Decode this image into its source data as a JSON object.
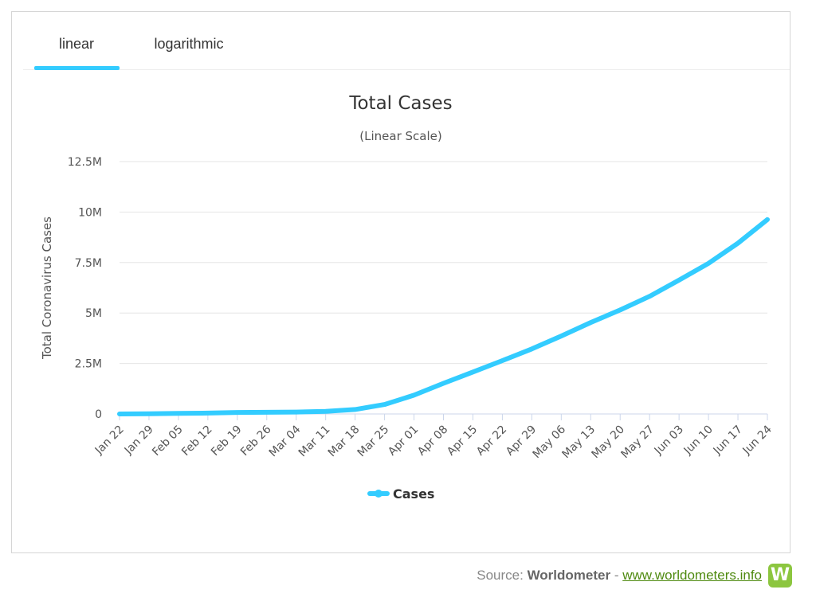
{
  "tabs": [
    {
      "label": "linear",
      "active": true
    },
    {
      "label": "logarithmic",
      "active": false
    }
  ],
  "chart_data": {
    "type": "line",
    "title": "Total Cases",
    "subtitle": "(Linear Scale)",
    "ylabel": "Total Coronavirus Cases",
    "xlabel": "",
    "ylim": [
      0,
      12500000
    ],
    "y_ticks": [
      {
        "value": 0,
        "label": "0"
      },
      {
        "value": 2500000,
        "label": "2.5M"
      },
      {
        "value": 5000000,
        "label": "5M"
      },
      {
        "value": 7500000,
        "label": "7.5M"
      },
      {
        "value": 10000000,
        "label": "10M"
      },
      {
        "value": 12500000,
        "label": "12.5M"
      }
    ],
    "x_tick_labels": [
      "Jan 22",
      "Jan 29",
      "Feb 05",
      "Feb 12",
      "Feb 19",
      "Feb 26",
      "Mar 04",
      "Mar 11",
      "Mar 18",
      "Mar 25",
      "Apr 01",
      "Apr 08",
      "Apr 15",
      "Apr 22",
      "Apr 29",
      "May 06",
      "May 13",
      "May 20",
      "May 27",
      "Jun 03",
      "Jun 10",
      "Jun 17",
      "Jun 24"
    ],
    "grid": true,
    "legend": "bottom-center",
    "series": [
      {
        "name": "Cases",
        "color": "#33ccff",
        "values": [
          600,
          6000,
          28000,
          45000,
          76000,
          83000,
          96000,
          127000,
          220000,
          470000,
          930000,
          1520000,
          2080000,
          2640000,
          3220000,
          3860000,
          4530000,
          5150000,
          5830000,
          6630000,
          7460000,
          8460000,
          9630000
        ]
      }
    ]
  },
  "source": {
    "prefix": "Source: ",
    "name": "Worldometer",
    "separator": " - ",
    "link": "www.worldometers.info",
    "logo_letter": "W"
  }
}
